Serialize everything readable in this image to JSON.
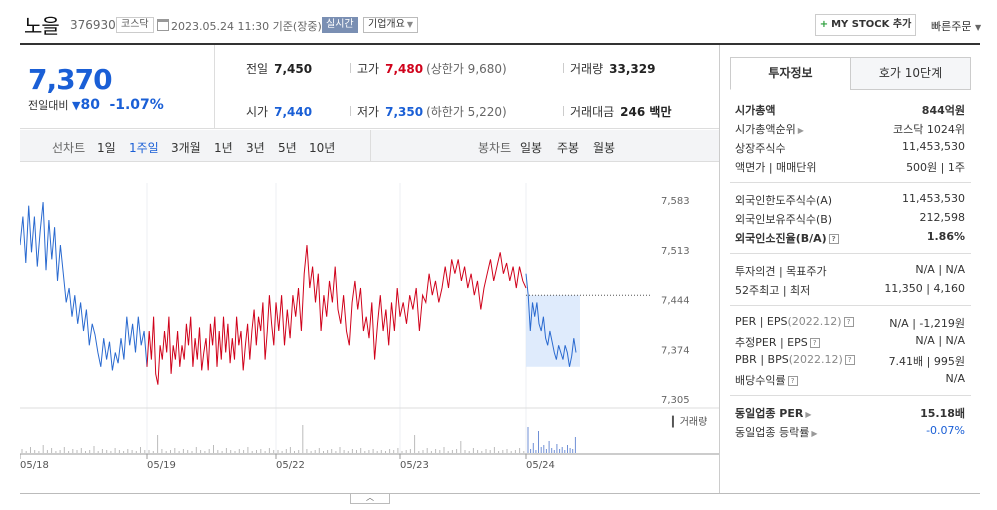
{
  "header": {
    "stock_name": "노을",
    "stock_code": "376930",
    "market": "코스닥",
    "timestamp": "2023.05.24 11:30 기준(장중)",
    "realtime_label": "실시간",
    "company_overview_label": "기업개요",
    "mystock_label": "MY STOCK 추가",
    "quick_order_label": "빠른주문"
  },
  "price": {
    "current": "7,370",
    "prev_day_label": "전일대비",
    "change_abs": "80",
    "change_pct": "-1.07%",
    "direction": "down"
  },
  "stats": {
    "prev_close_label": "전일",
    "prev_close": "7,450",
    "high_label": "고가",
    "high": "7,480",
    "upper_limit": "(상한가 9,680)",
    "volume_label": "거래량",
    "volume": "33,329",
    "open_label": "시가",
    "open": "7,440",
    "low_label": "저가",
    "low": "7,350",
    "lower_limit": "(하한가 5,220)",
    "trade_value_label": "거래대금",
    "trade_value": "246 백만"
  },
  "periods": {
    "line_chart_label": "선차트",
    "line_periods": [
      "1일",
      "1주일",
      "3개월",
      "1년",
      "3년",
      "5년",
      "10년"
    ],
    "active": "1주일",
    "candle_chart_label": "봉차트",
    "candle_periods": [
      "일봉",
      "주봉",
      "월봉"
    ]
  },
  "chart_data": {
    "type": "line",
    "y_ticks": [
      "7,583",
      "7,513",
      "7,444",
      "7,374",
      "7,305"
    ],
    "ylim": [
      7305,
      7583
    ],
    "x_ticks": [
      "05/18",
      "05/19",
      "05/22",
      "05/23",
      "05/24"
    ],
    "volume_label": "거래량",
    "reference_price": 7450,
    "series": [
      {
        "day": "05/18",
        "color": "#2a6ad0",
        "values": [
          7520,
          7560,
          7495,
          7575,
          7510,
          7560,
          7490,
          7540,
          7580,
          7485,
          7555,
          7500,
          7545,
          7470,
          7520,
          7480,
          7440,
          7460,
          7420,
          7450,
          7410,
          7440,
          7400,
          7430,
          7380,
          7410,
          7395,
          7370,
          7350,
          7390,
          7360,
          7385,
          7345,
          7370,
          7355,
          7390,
          7360,
          7420,
          7380,
          7410,
          7370,
          7420,
          7380,
          7400,
          7350
        ]
      },
      {
        "day": "05/19",
        "color": "#d0021b",
        "values": [
          7350,
          7400,
          7360,
          7420,
          7340,
          7325,
          7380,
          7360,
          7400,
          7370,
          7420,
          7340,
          7380,
          7360,
          7400,
          7350,
          7380,
          7360,
          7410,
          7380,
          7420,
          7350,
          7390,
          7360,
          7405,
          7345,
          7370,
          7390,
          7345,
          7410,
          7380,
          7420,
          7350,
          7400,
          7360,
          7420,
          7370,
          7410,
          7355,
          7390,
          7360,
          7420,
          7380,
          7400,
          7345,
          7380,
          7410,
          7360,
          7400,
          7430,
          7380,
          7420,
          7400,
          7440,
          7360,
          7400,
          7450,
          7410,
          7380,
          7440
        ]
      },
      {
        "day": "05/22",
        "color": "#d0021b",
        "values": [
          7440,
          7400,
          7450,
          7380,
          7430,
          7390,
          7450,
          7420,
          7460,
          7400,
          7480,
          7520,
          7460,
          7490,
          7440,
          7480,
          7400,
          7450,
          7420,
          7470,
          7440,
          7490,
          7430,
          7410,
          7450,
          7400,
          7380,
          7440,
          7470,
          7430,
          7460,
          7400,
          7420,
          7390,
          7440,
          7360,
          7410,
          7450,
          7400,
          7430,
          7380,
          7440,
          7400,
          7460,
          7420
        ]
      },
      {
        "day": "05/23",
        "color": "#d0021b",
        "values": [
          7420,
          7440,
          7410,
          7450,
          7430,
          7460,
          7400,
          7450,
          7440,
          7480,
          7450,
          7470,
          7440,
          7460,
          7490,
          7460,
          7500,
          7480,
          7500,
          7470,
          7490,
          7460,
          7480,
          7450,
          7470,
          7430,
          7460,
          7480,
          7500,
          7470,
          7490,
          7510,
          7480,
          7495,
          7470,
          7490,
          7460,
          7490,
          7470,
          7460
        ]
      },
      {
        "day": "05/24",
        "color": "#2a6ad0",
        "values": [
          7480,
          7450,
          7400,
          7440,
          7420,
          7440,
          7410,
          7400,
          7420,
          7390,
          7380,
          7400,
          7385,
          7370,
          7360,
          7380,
          7370,
          7360,
          7380,
          7370,
          7350,
          7365,
          7390,
          7370
        ]
      }
    ]
  },
  "right_panel": {
    "tabs": [
      "투자정보",
      "호가 10단계"
    ],
    "active_tab": "투자정보",
    "section1": [
      {
        "k": "시가총액",
        "v": "844억원"
      },
      {
        "k": "시가총액순위",
        "v": "코스닥 1024위"
      },
      {
        "k": "상장주식수",
        "v": "11,453,530"
      },
      {
        "k": "액면가 | 매매단위",
        "v": "500원 | 1주"
      }
    ],
    "section2": [
      {
        "k": "외국인한도주식수(A)",
        "v": "11,453,530"
      },
      {
        "k": "외국인보유주식수(B)",
        "v": "212,598"
      },
      {
        "k": "외국인소진율(B/A)",
        "v": "1.86%"
      }
    ],
    "section3": [
      {
        "k": "투자의견 | 목표주가",
        "v": "N/A | N/A"
      },
      {
        "k": "52주최고 | 최저",
        "v": "11,350 | 4,160"
      }
    ],
    "section4": [
      {
        "k": "PER | EPS",
        "k_sub": "(2022.12)",
        "v": "N/A | -1,219원"
      },
      {
        "k": "추정PER | EPS",
        "v": "N/A | N/A"
      },
      {
        "k": "PBR | BPS",
        "k_sub": "(2022.12)",
        "v": "7.41배 | 995원"
      },
      {
        "k": "배당수익률",
        "v": "N/A"
      }
    ],
    "section5": [
      {
        "k": "동일업종 PER",
        "v": "15.18배"
      },
      {
        "k": "동일업종 등락률",
        "v": "-0.07%"
      }
    ]
  }
}
